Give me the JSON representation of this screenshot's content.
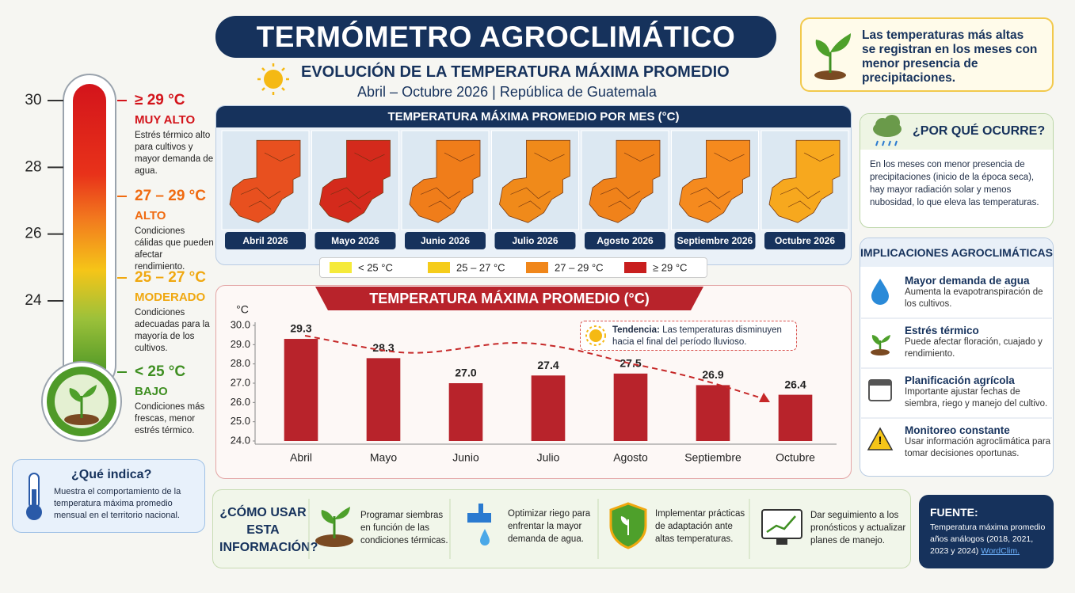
{
  "header": {
    "title": "TERMÓMETRO AGROCLIMÁTICO",
    "subtitle": "EVOLUCIÓN DE LA TEMPERATURA MÁXIMA PROMEDIO",
    "period": "Abril – Octubre 2026 | República de Guatemala"
  },
  "callout": "Las temperaturas más altas se registran en los meses con menor presencia de precipitaciones.",
  "thermometer": {
    "ticks": [
      30,
      28,
      26,
      24
    ],
    "levels": [
      {
        "range": "≥ 29 °C",
        "label": "MUY ALTO",
        "desc": "Estrés térmico alto para cultivos y mayor demanda de agua.",
        "color": "#d3141b"
      },
      {
        "range": "27 – 29 °C",
        "label": "ALTO",
        "desc": "Condiciones cálidas que pueden afectar rendimiento.",
        "color": "#f06a10"
      },
      {
        "range": "25 – 27 °C",
        "label": "MODERADO",
        "desc": "Condiciones adecuadas para la mayoría de los cultivos.",
        "color": "#f0a810"
      },
      {
        "range": "< 25 °C",
        "label": "BAJO",
        "desc": "Condiciones más frescas, menor estrés térmico.",
        "color": "#3f8f22"
      }
    ]
  },
  "what": {
    "title": "¿Qué indica?",
    "text": "Muestra el comportamiento de la temperatura máxima promedio mensual en el territorio nacional."
  },
  "maps": {
    "title": "TEMPERATURA MÁXIMA PROMEDIO POR MES (°C)",
    "months": [
      {
        "label": "Abril 2026",
        "color": "#e8501f"
      },
      {
        "label": "Mayo 2026",
        "color": "#d42a1c"
      },
      {
        "label": "Junio 2026",
        "color": "#f07d1a"
      },
      {
        "label": "Julio 2026",
        "color": "#f08a1a"
      },
      {
        "label": "Agosto 2026",
        "color": "#f0821a"
      },
      {
        "label": "Septiembre 2026",
        "color": "#f58a1e"
      },
      {
        "label": "Octubre 2026",
        "color": "#f7a81e"
      }
    ],
    "legend": [
      {
        "label": "< 25 °C",
        "color": "#f5ea3a"
      },
      {
        "label": "25 – 27 °C",
        "color": "#f5cc1a"
      },
      {
        "label": "27 – 29 °C",
        "color": "#f0861a"
      },
      {
        "label": "≥ 29 °C",
        "color": "#c81e1e"
      }
    ]
  },
  "why": {
    "title": "¿POR QUÉ OCURRE?",
    "text": "En los meses con menor presencia de precipitaciones (inicio de la época seca), hay mayor radiación solar y menos nubosidad, lo que eleva las temperaturas."
  },
  "implications": {
    "title": "IMPLICACIONES AGROCLIMÁTICAS",
    "items": [
      {
        "title": "Mayor demanda de agua",
        "text": "Aumenta la evapotranspiración de los cultivos."
      },
      {
        "title": "Estrés térmico",
        "text": "Puede afectar floración, cuajado y rendimiento."
      },
      {
        "title": "Planificación agrícola",
        "text": "Importante ajustar fechas de siembra, riego y manejo del cultivo."
      },
      {
        "title": "Monitoreo constante",
        "text": "Usar información agroclimática para tomar decisiones oportunas."
      }
    ]
  },
  "how": {
    "title": "¿CÓMO USAR ESTA INFORMACIÓN?",
    "items": [
      "Programar siembras en función de las condiciones térmicas.",
      "Optimizar riego para enfrentar la mayor demanda de agua.",
      "Implementar prácticas de adaptación ante altas temperaturas.",
      "Dar seguimiento a los pronósticos y actualizar planes de manejo."
    ]
  },
  "source": {
    "title": "FUENTE:",
    "text": "Temperatura máxima promedio años análogos (2018, 2021, 2023 y 2024)",
    "link": "WordClim."
  },
  "chart_data": {
    "type": "bar",
    "title": "TEMPERATURA MÁXIMA PROMEDIO (°C)",
    "y_label": "°C",
    "categories": [
      "Abril",
      "Mayo",
      "Junio",
      "Julio",
      "Agosto",
      "Septiembre",
      "Octubre"
    ],
    "values": [
      29.3,
      28.3,
      27.0,
      27.4,
      27.5,
      26.9,
      26.4
    ],
    "value_labels": [
      "29.3",
      "28.3",
      "27.0",
      "27.4",
      "27.5",
      "26.9",
      "26.4"
    ],
    "color": "#b8232b",
    "ylim": [
      24,
      30
    ],
    "yticks": [
      {
        "value": 30,
        "label": "30.0"
      },
      {
        "value": 29,
        "label": "29.0"
      },
      {
        "value": 28,
        "label": "28.0"
      },
      {
        "value": 27,
        "label": "27.0"
      },
      {
        "value": 26,
        "label": "26.0"
      },
      {
        "value": 25,
        "label": "25.0"
      },
      {
        "value": 24,
        "label": "24.0"
      }
    ],
    "grid": false,
    "annotation": {
      "label": "Tendencia:",
      "text": "Las temperaturas disminuyen hacia el final del período lluvioso."
    }
  }
}
